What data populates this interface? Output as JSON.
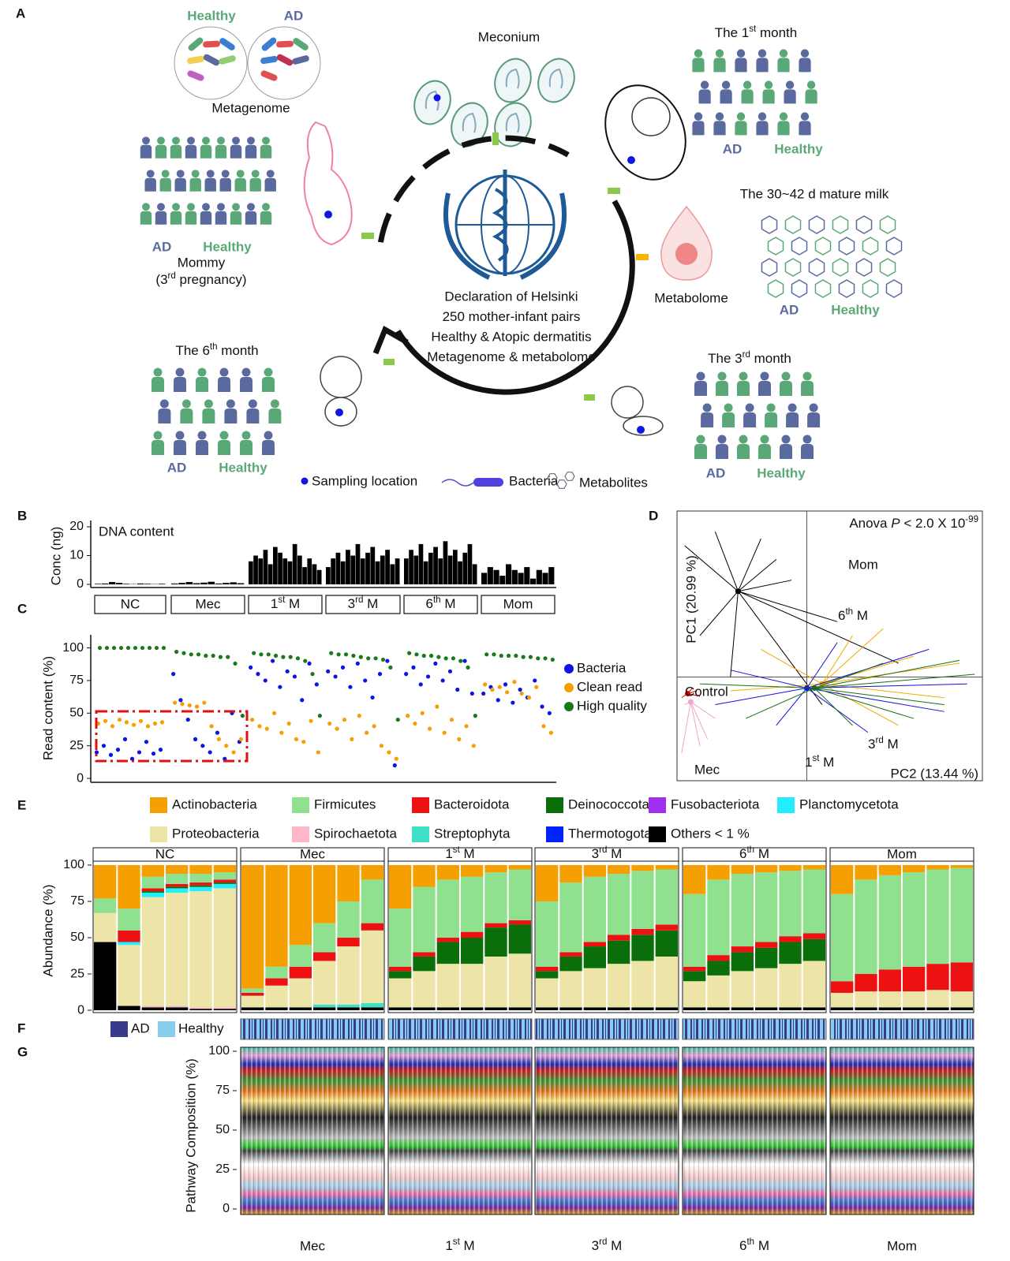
{
  "panel_labels": [
    "A",
    "B",
    "C",
    "D",
    "E",
    "F",
    "G"
  ],
  "panel_a": {
    "metagenome": {
      "healthy": "Healthy",
      "ad": "AD",
      "title": "Metagenome"
    },
    "meconium": "Meconium",
    "month1": {
      "title": {
        "pre": "The 1",
        "sup": "st",
        "post": " month"
      },
      "ad": "AD",
      "healthy": "Healthy"
    },
    "milk": {
      "title": "The 30~42 d mature milk",
      "ad": "AD",
      "healthy": "Healthy"
    },
    "metabolome": "Metabolome",
    "mommy": {
      "ad": "AD",
      "healthy": "Healthy",
      "title": "Mommy",
      "subtitle": {
        "pre": "(3",
        "sup": "rd",
        "post": " pregnancy)"
      }
    },
    "center": [
      "Declaration of Helsinki",
      "250 mother-infant pairs",
      "Healthy & Atopic dermatitis",
      "Metagenome & metabolome"
    ],
    "center_colors": [
      "#111111",
      "#d01010",
      "#1a7fd4",
      "#8a3ab8"
    ],
    "month6": {
      "title": {
        "pre": "The 6",
        "sup": "th",
        "post": " month"
      },
      "ad": "AD",
      "healthy": "Healthy"
    },
    "month3": {
      "title": {
        "pre": "The 3",
        "sup": "rd",
        "post": " month"
      },
      "ad": "AD",
      "healthy": "Healthy"
    },
    "legend": [
      "Sampling location",
      "Bacteria",
      "Metabolites"
    ]
  },
  "chart_data": [
    {
      "type": "bar",
      "title": "DNA content",
      "y_label": "Conc (ng)",
      "color": "#000000",
      "ylim": [
        -1.1,
        22.2
      ],
      "yticks": [
        0,
        10,
        20
      ],
      "groups": [
        {
          "label": "NC",
          "values": [
            0.2,
            0.3,
            0.8,
            0.5,
            0.2,
            0.1,
            0.3,
            0.2,
            0.1,
            0.2
          ]
        },
        {
          "label": "Mec",
          "values": [
            0.3,
            0.5,
            0.8,
            0.4,
            0.6,
            0.9,
            0.3,
            0.5,
            0.7,
            0.4
          ]
        },
        {
          "label": {
            "pre": "1",
            "sup": "st",
            "post": " M"
          },
          "values": [
            8,
            10,
            9,
            12,
            7,
            13,
            11,
            9,
            8,
            14,
            10,
            6,
            9,
            7,
            5
          ]
        },
        {
          "label": {
            "pre": "3",
            "sup": "rd",
            "post": " M"
          },
          "values": [
            6,
            9,
            11,
            8,
            12,
            10,
            14,
            9,
            11,
            13,
            8,
            10,
            12,
            7,
            9
          ]
        },
        {
          "label": {
            "pre": "6",
            "sup": "th",
            "post": " M"
          },
          "values": [
            9,
            12,
            10,
            14,
            8,
            11,
            13,
            9,
            15,
            10,
            12,
            8,
            11,
            14,
            7
          ]
        },
        {
          "label": "Mom",
          "values": [
            4,
            6,
            5,
            3,
            7,
            5,
            4,
            6,
            2,
            5,
            4,
            6
          ]
        }
      ]
    },
    {
      "type": "strip",
      "y_label": "Read content (%)",
      "ylim": [
        -3,
        110
      ],
      "yticks": [
        0,
        25,
        50,
        75,
        100
      ],
      "series": [
        {
          "name": "Bacteria",
          "color": "#0a14e6",
          "values": [
            [
              20,
              25,
              18,
              22,
              30,
              15,
              20,
              28,
              19,
              22
            ],
            [
              80,
              60,
              45,
              30,
              25,
              20,
              35,
              15,
              50,
              28
            ],
            [
              85,
              80,
              75,
              90,
              70,
              82,
              78,
              60,
              88,
              72
            ],
            [
              82,
              78,
              85,
              70,
              88,
              75,
              62,
              80,
              90,
              10
            ],
            [
              80,
              85,
              72,
              78,
              88,
              75,
              82,
              68,
              90,
              65
            ],
            [
              65,
              70,
              60,
              72,
              58,
              68,
              62,
              75,
              55,
              50
            ]
          ]
        },
        {
          "name": "Clean read",
          "color": "#f5a000",
          "values": [
            [
              42,
              44,
              40,
              45,
              43,
              41,
              44,
              40,
              42,
              43
            ],
            [
              58,
              57,
              56,
              55,
              58,
              40,
              30,
              25,
              20,
              30
            ],
            [
              45,
              40,
              38,
              50,
              35,
              42,
              30,
              28,
              44,
              20
            ],
            [
              42,
              38,
              45,
              30,
              48,
              35,
              40,
              25,
              20,
              15
            ],
            [
              48,
              42,
              50,
              38,
              55,
              35,
              45,
              30,
              40,
              25
            ],
            [
              72,
              68,
              70,
              66,
              74,
              65,
              62,
              70,
              40,
              35
            ]
          ]
        },
        {
          "name": "High quality",
          "color": "#1a7a1a",
          "values": [
            [
              100,
              100,
              100,
              100,
              100,
              100,
              100,
              100,
              100,
              100
            ],
            [
              97,
              96,
              95,
              95,
              94,
              94,
              93,
              93,
              88,
              48
            ],
            [
              96,
              95,
              95,
              94,
              93,
              93,
              92,
              90,
              80,
              48
            ],
            [
              96,
              95,
              95,
              94,
              93,
              92,
              92,
              91,
              85,
              45
            ],
            [
              96,
              95,
              94,
              94,
              93,
              92,
              92,
              90,
              85,
              48
            ],
            [
              95,
              95,
              94,
              94,
              94,
              93,
              93,
              92,
              92,
              91
            ]
          ]
        }
      ]
    },
    {
      "type": "pca",
      "title": {
        "pre": "Anova ",
        "italic": "P",
        "mid": " < 2.0 X 10",
        "sup": "-99"
      },
      "x_label": "PC2 (13.44 %)",
      "y_label": "PC1 (20.99 %)",
      "xlim": [
        -0.85,
        1.15
      ],
      "ylim": [
        -0.75,
        1.2
      ],
      "groups": [
        {
          "name": "Mom",
          "color": "#000000",
          "center_x": -0.45,
          "center_y": 0.62,
          "x": [
            -0.8,
            -0.6,
            -0.3,
            -0.1,
            0.2,
            0.6,
            -0.7,
            -0.5,
            0.1,
            -0.2
          ],
          "y": [
            0.95,
            1.05,
            1.0,
            0.7,
            0.4,
            0.1,
            0.3,
            0.0,
            -0.2,
            0.85
          ]
        },
        {
          "name": {
            "pre": "6",
            "sup": "th",
            "post": " M"
          },
          "color": "#f5a800",
          "center_x": 0.1,
          "center_y": -0.05,
          "x": [
            0.7,
            1.0,
            0.5,
            -0.3,
            0.3,
            0.9,
            -0.5,
            0.6
          ],
          "y": [
            0.15,
            0.1,
            0.35,
            0.2,
            0.3,
            -0.15,
            -0.1,
            -0.35
          ]
        },
        {
          "name": {
            "pre": "1",
            "sup": "st",
            "post": " M"
          },
          "color": "#1010e0",
          "center_x": 0.0,
          "center_y": -0.08,
          "x": [
            1.05,
            0.8,
            -0.6,
            0.4,
            -0.2,
            0.9,
            0.2,
            -0.5
          ],
          "y": [
            -0.05,
            0.2,
            -0.2,
            -0.4,
            -0.35,
            -0.25,
            0.25,
            0.05
          ]
        },
        {
          "name": {
            "pre": "3",
            "sup": "rd",
            "post": " M"
          },
          "color": "#1a6e1a",
          "center_x": 0.05,
          "center_y": -0.08,
          "x": [
            1.1,
            0.7,
            -0.4,
            0.5,
            0.9,
            -0.7,
            0.3,
            1.0
          ],
          "y": [
            0.02,
            -0.3,
            -0.3,
            0.1,
            -0.2,
            -0.05,
            -0.35,
            0.12
          ]
        },
        {
          "name": "Control",
          "color": "#e00000",
          "center_x": -0.78,
          "center_y": -0.12,
          "x": [
            -0.72,
            -0.82,
            -0.75,
            -0.7
          ],
          "y": [
            -0.1,
            -0.15,
            -0.08,
            -0.14
          ]
        },
        {
          "name": "Mec",
          "color": "#f4a6c8",
          "center_x": -0.76,
          "center_y": -0.18,
          "x": [
            -0.82,
            -0.7,
            -0.6,
            -0.8,
            -0.65
          ],
          "y": [
            -0.55,
            -0.5,
            -0.3,
            -0.2,
            -0.45
          ]
        }
      ]
    },
    {
      "type": "stacked_bar",
      "y_label": "Abundance (%)",
      "ylim": [
        -1.6,
        102.7
      ],
      "yticks": [
        0,
        25,
        50,
        75,
        100
      ],
      "groups": [
        "NC",
        "Mec",
        {
          "pre": "1",
          "sup": "st",
          "post": " M"
        },
        {
          "pre": "3",
          "sup": "rd",
          "post": " M"
        },
        {
          "pre": "6",
          "sup": "th",
          "post": " M"
        },
        "Mom"
      ],
      "series": [
        {
          "name": "Actinobacteria",
          "color": "#f5a000",
          "values": [
            23,
            30,
            8,
            6,
            6,
            5,
            85,
            70,
            55,
            40,
            25,
            10,
            30,
            15,
            10,
            8,
            5,
            3,
            25,
            12,
            8,
            6,
            4,
            3,
            20,
            10,
            6,
            5,
            4,
            3,
            20,
            10,
            7,
            5,
            3,
            2
          ]
        },
        {
          "name": "Firmicutes",
          "color": "#8fe08f",
          "values": [
            10,
            15,
            8,
            7,
            6,
            5,
            3,
            8,
            15,
            20,
            25,
            30,
            40,
            45,
            40,
            38,
            35,
            35,
            45,
            48,
            45,
            42,
            40,
            38,
            50,
            52,
            50,
            48,
            45,
            44,
            60,
            65,
            65,
            65,
            65,
            65
          ]
        },
        {
          "name": "Bacteroidota",
          "color": "#ee1111",
          "values": [
            0,
            8,
            2,
            2,
            2,
            2,
            2,
            5,
            8,
            6,
            6,
            5,
            3,
            3,
            3,
            4,
            3,
            3,
            3,
            3,
            3,
            4,
            4,
            4,
            3,
            4,
            4,
            4,
            4,
            4,
            8,
            12,
            15,
            17,
            18,
            20
          ]
        },
        {
          "name": "Deinococcota",
          "color": "#0a6e0a",
          "values": [
            0,
            0,
            1,
            1,
            1,
            1,
            0,
            0,
            0,
            0,
            0,
            0,
            5,
            10,
            15,
            18,
            20,
            20,
            5,
            10,
            15,
            16,
            18,
            18,
            7,
            10,
            13,
            14,
            15,
            15,
            0,
            0,
            0,
            0,
            0,
            0
          ]
        },
        {
          "name": "Fusobacteriota",
          "color": "#a030f0",
          "values": [
            0,
            0,
            0,
            0,
            0,
            0,
            0,
            0,
            0,
            0,
            0,
            0,
            0,
            0,
            0,
            0,
            0,
            0,
            0,
            0,
            0,
            0,
            0,
            0,
            0,
            0,
            0,
            0,
            0,
            0,
            0,
            0,
            0,
            0,
            0,
            0
          ]
        },
        {
          "name": "Planctomycetota",
          "color": "#22eeff",
          "values": [
            0,
            2,
            3,
            3,
            3,
            3,
            0,
            0,
            0,
            0,
            0,
            0,
            0,
            0,
            0,
            0,
            0,
            0,
            0,
            0,
            0,
            0,
            0,
            0,
            0,
            0,
            0,
            0,
            0,
            0,
            0,
            0,
            0,
            0,
            0,
            0
          ]
        },
        {
          "name": "Proteobacteria",
          "color": "#ede5a8",
          "values": [
            20,
            42,
            75,
            78,
            80,
            82,
            8,
            15,
            20,
            30,
            40,
            50,
            20,
            25,
            30,
            30,
            35,
            37,
            20,
            25,
            27,
            30,
            32,
            35,
            18,
            22,
            25,
            27,
            30,
            32,
            10,
            11,
            11,
            11,
            12,
            11
          ]
        },
        {
          "name": "Spirochaetota",
          "color": "#ffb6c8",
          "values": [
            0,
            0,
            1,
            1,
            1,
            1,
            0,
            0,
            0,
            0,
            0,
            0,
            0,
            0,
            0,
            0,
            0,
            0,
            0,
            0,
            0,
            0,
            0,
            0,
            0,
            0,
            0,
            0,
            0,
            0,
            0,
            0,
            0,
            0,
            0,
            0
          ]
        },
        {
          "name": "Streptophyta",
          "color": "#40e0c8",
          "values": [
            0,
            0,
            0,
            0,
            0,
            0,
            0,
            0,
            0,
            2,
            2,
            3,
            0,
            0,
            0,
            0,
            0,
            0,
            0,
            0,
            0,
            0,
            0,
            0,
            0,
            0,
            0,
            0,
            0,
            0,
            0,
            0,
            0,
            0,
            0,
            0
          ]
        },
        {
          "name": "Thermotogota",
          "color": "#0022ff",
          "values": [
            0,
            0,
            0,
            0,
            0,
            0,
            0,
            0,
            0,
            0,
            0,
            0,
            0,
            0,
            0,
            0,
            0,
            0,
            0,
            0,
            0,
            0,
            0,
            0,
            0,
            0,
            0,
            0,
            0,
            0,
            0,
            0,
            0,
            0,
            0,
            0
          ]
        },
        {
          "name": "Others < 1 %",
          "color": "#000000",
          "values": [
            47,
            3,
            2,
            2,
            1,
            1,
            2,
            2,
            2,
            2,
            2,
            2,
            2,
            2,
            2,
            2,
            2,
            2,
            2,
            2,
            2,
            2,
            2,
            2,
            2,
            2,
            2,
            2,
            2,
            2,
            2,
            2,
            2,
            2,
            2,
            2
          ]
        }
      ]
    },
    {
      "type": "pathway",
      "y_label": "Pathway Composition (%)",
      "ylim": [
        -3.5,
        102.5
      ],
      "yticks": [
        0,
        25,
        50,
        75,
        100
      ],
      "groups": [
        "Mec",
        {
          "pre": "1",
          "sup": "st",
          "post": " M"
        },
        {
          "pre": "3",
          "sup": "rd",
          "post": " M"
        },
        {
          "pre": "6",
          "sup": "th",
          "post": " M"
        },
        "Mom"
      ]
    }
  ],
  "panel_f": {
    "legend": [
      {
        "name": "AD",
        "color": "#3a3a8c"
      },
      {
        "name": "Healthy",
        "color": "#87cdee"
      }
    ]
  }
}
